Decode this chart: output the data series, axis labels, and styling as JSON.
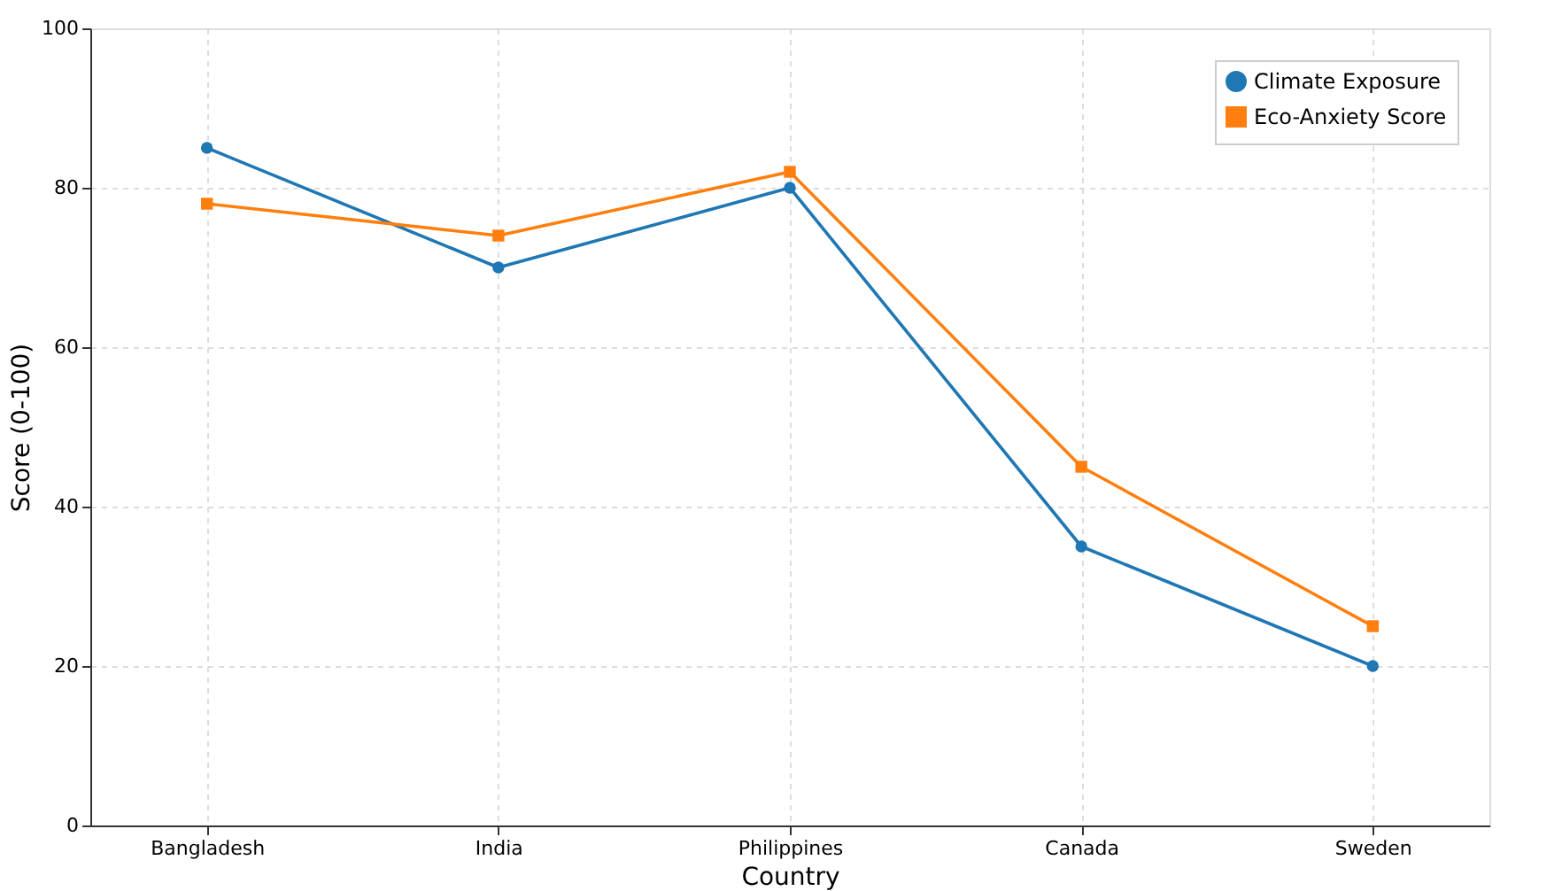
{
  "chart_data": {
    "type": "line",
    "xlabel": "Country",
    "ylabel": "Score (0-100)",
    "categories": [
      "Bangladesh",
      "India",
      "Philippines",
      "Canada",
      "Sweden"
    ],
    "series": [
      {
        "name": "Climate Exposure",
        "color": "#1f77b4",
        "values": [
          85,
          70,
          80,
          35,
          20
        ],
        "marker": "circle"
      },
      {
        "name": "Eco-Anxiety Score",
        "color": "#ff7f0e",
        "values": [
          78,
          74,
          82,
          45,
          25
        ],
        "marker": "square"
      }
    ],
    "ylim": [
      0,
      100
    ],
    "yticks": [
      0,
      20,
      40,
      60,
      80,
      100
    ],
    "grid": true,
    "legend": "top right",
    "line_style": "solid"
  }
}
